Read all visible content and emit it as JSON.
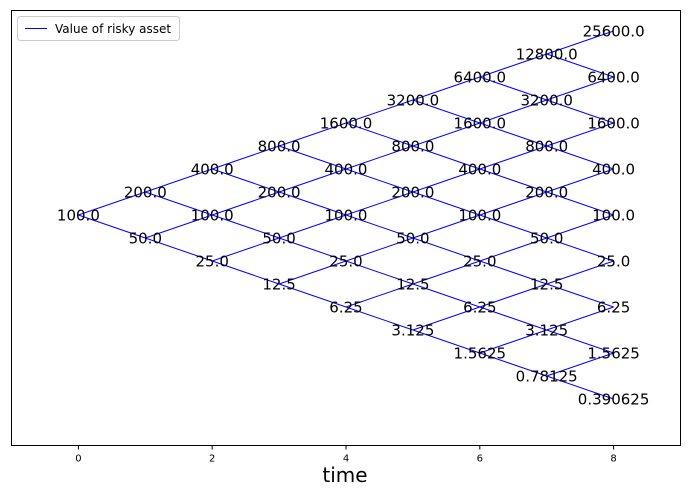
{
  "chart_data": {
    "type": "line",
    "title": "",
    "xlabel": "time",
    "ylabel": "",
    "xlim": [
      -1,
      9
    ],
    "xticks": [
      0,
      2,
      4,
      6,
      8
    ],
    "xtick_labels": [
      "0",
      "2",
      "4",
      "6",
      "8"
    ],
    "grid": false,
    "legend": {
      "location": "upper-left",
      "entries": [
        "Value of risky asset"
      ]
    },
    "series": [
      {
        "name": "Value of risky asset",
        "color": "#0000ff",
        "model": "binomial-tree",
        "initial_value": 100.0,
        "up_factor": 2.0,
        "down_factor": 0.5,
        "steps": 8
      }
    ],
    "node_labels": [
      [
        "100.0"
      ],
      [
        "200.0",
        "50.0"
      ],
      [
        "400.0",
        "100.0",
        "25.0"
      ],
      [
        "800.0",
        "200.0",
        "50.0",
        "12.5"
      ],
      [
        "1600.0",
        "400.0",
        "100.0",
        "25.0",
        "6.25"
      ],
      [
        "3200.0",
        "800.0",
        "200.0",
        "50.0",
        "12.5",
        "3.125"
      ],
      [
        "6400.0",
        "1600.0",
        "400.0",
        "100.0",
        "25.0",
        "6.25",
        "1.5625"
      ],
      [
        "12800.0",
        "3200.0",
        "800.0",
        "200.0",
        "50.0",
        "12.5",
        "3.125",
        "0.78125"
      ],
      [
        "25600.0",
        "6400.0",
        "1600.0",
        "400.0",
        "100.0",
        "25.0",
        "6.25",
        "1.5625",
        "0.390625"
      ]
    ]
  }
}
